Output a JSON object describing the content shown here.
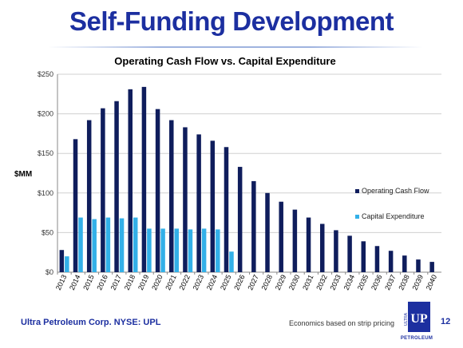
{
  "slide": {
    "title": "Self-Funding Development",
    "footer_left": "Ultra Petroleum Corp. NYSE: UPL",
    "footer_center": "Economics based on strip pricing",
    "page_number": "12",
    "logo": {
      "name": "ultra-petroleum-logo",
      "initials": "UP",
      "wordmark": "PETROLEUM",
      "vertical": "ULTRA"
    }
  },
  "colors": {
    "title": "#1c2fa0",
    "operating": "#0f1d5c",
    "capex": "#33b0e8",
    "grid": "#d0d0d0",
    "axis": "#888888"
  },
  "chart_data": {
    "type": "bar",
    "title": "Operating Cash Flow vs. Capital Expenditure",
    "ylabel": "$MM",
    "xlabel": "",
    "ylim": [
      0,
      250
    ],
    "yticks": [
      0,
      50,
      100,
      150,
      200,
      250
    ],
    "ytick_labels": [
      "$0",
      "$50",
      "$100",
      "$150",
      "$200",
      "$250"
    ],
    "grid": true,
    "legend_position": "right",
    "categories": [
      "2013",
      "2014",
      "2015",
      "2016",
      "2017",
      "2018",
      "2019",
      "2020",
      "2021",
      "2022",
      "2023",
      "2024",
      "2025",
      "2026",
      "2027",
      "2028",
      "2029",
      "2030",
      "2031",
      "2032",
      "2033",
      "2034",
      "2035",
      "2036",
      "2037",
      "2038",
      "2039",
      "2040"
    ],
    "series": [
      {
        "name": "Operating Cash Flow",
        "color": "#0f1d5c",
        "values": [
          28,
          168,
          192,
          207,
          216,
          231,
          234,
          206,
          192,
          183,
          174,
          166,
          158,
          133,
          115,
          100,
          89,
          79,
          69,
          61,
          53,
          46,
          39,
          33,
          27,
          21,
          16,
          13
        ]
      },
      {
        "name": "Capital Expenditure",
        "color": "#33b0e8",
        "values": [
          20,
          69,
          67,
          69,
          68,
          69,
          55,
          55,
          55,
          54,
          55,
          54,
          26,
          0,
          0,
          0,
          0,
          0,
          0,
          0,
          0,
          0,
          0,
          0,
          0,
          0,
          0,
          0
        ]
      }
    ]
  }
}
